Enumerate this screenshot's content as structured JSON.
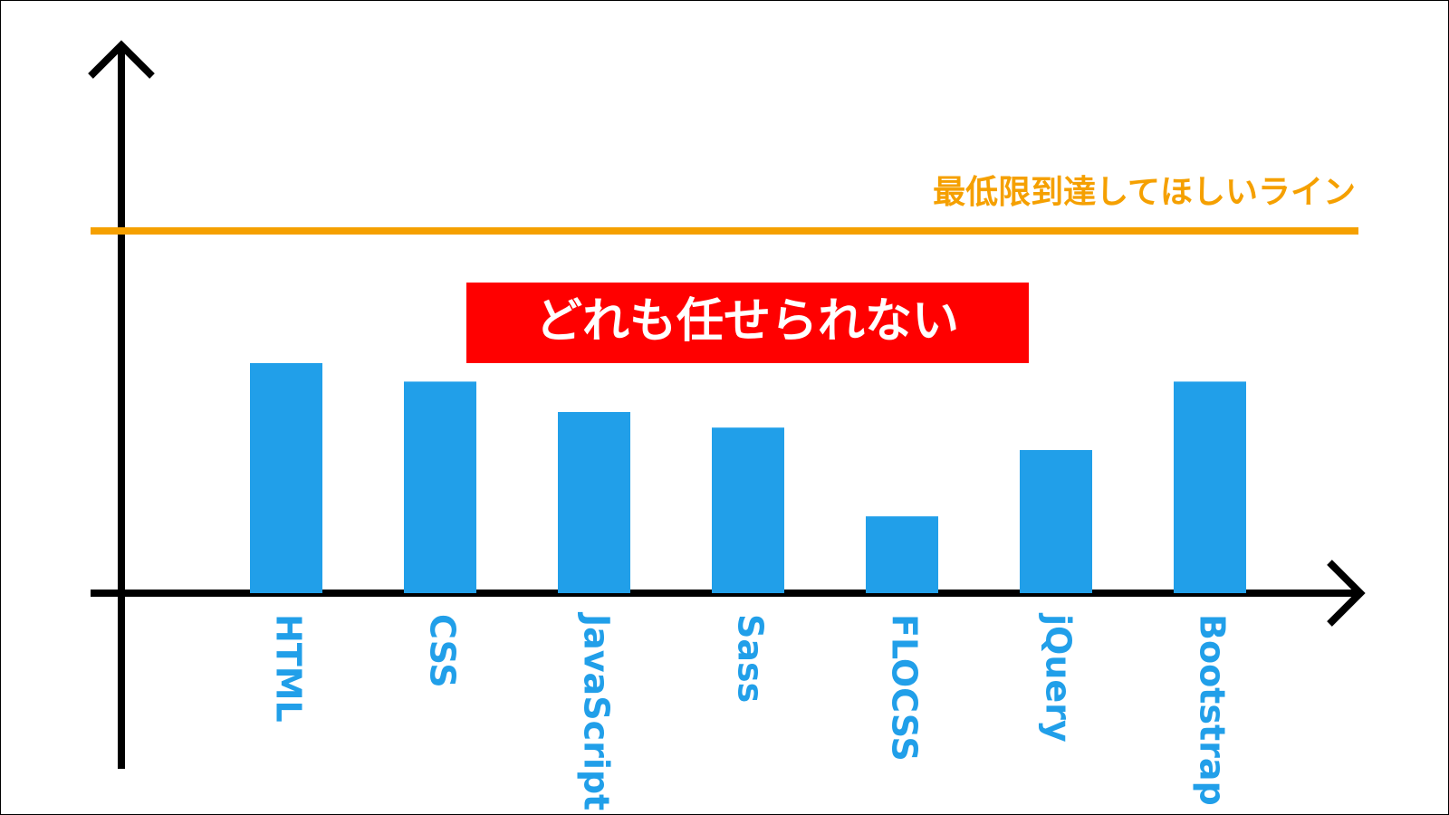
{
  "chart_data": {
    "type": "bar",
    "categories": [
      "HTML",
      "CSS",
      "JavaScript",
      "Sass",
      "FLOCSS",
      "jQuery",
      "Bootstrap"
    ],
    "values": [
      63.5,
      58.4,
      50,
      45.7,
      21.2,
      39.5,
      58.4
    ],
    "color": "#219fe9",
    "ylim": [
      0,
      150
    ],
    "threshold": {
      "value": 100,
      "label": "最低限到達してほしいライン",
      "color": "#f5a000"
    },
    "annotation": "どれも任せられない"
  }
}
